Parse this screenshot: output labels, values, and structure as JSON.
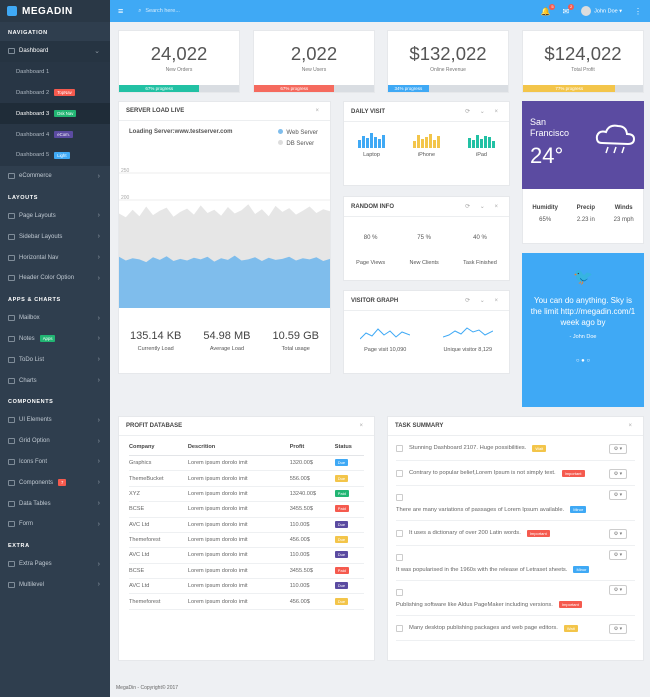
{
  "brand": {
    "name": "MEGADIN"
  },
  "topbar": {
    "search_placeholder": "Search here...",
    "notif_count": "5",
    "mail_count": "2",
    "user": "John Doe"
  },
  "sidebar": {
    "navigation_title": "NAVIGATION",
    "dashboard": "Dashboard",
    "subs": [
      {
        "label": "Dashboard 1",
        "badge": "",
        "color": ""
      },
      {
        "label": "Dashboard 2",
        "badge": "TopNav",
        "color": "#f55a4e"
      },
      {
        "label": "Dashboard 3",
        "badge": "Dsk Nav",
        "color": "#22b573"
      },
      {
        "label": "Dashboard 4",
        "badge": "eCom.",
        "color": "#5b4ba1"
      },
      {
        "label": "Dashboard 5",
        "badge": "Light",
        "color": "#3fa9f5"
      }
    ],
    "ecommerce": "eCommerce",
    "layouts_title": "LAYOUTS",
    "layouts": [
      "Page Layouts",
      "Sidebar Layouts",
      "Horizontal Nav",
      "Header Color Option"
    ],
    "apps_title": "APPS & CHARTS",
    "apps": [
      "Mailbox",
      "Notes",
      "ToDo List",
      "Charts"
    ],
    "notes_badge": "Apps",
    "components_title": "COMPONENTS",
    "components": [
      "UI Elements",
      "Grid Option",
      "Icons Font",
      "Components",
      "Data Tables",
      "Form"
    ],
    "components_badge": "7",
    "extra_title": "EXTRA",
    "extra": [
      "Extra Pages",
      "Multilevel"
    ]
  },
  "stats": [
    {
      "value": "24,022",
      "label": "New Orders",
      "progress": "67% progress",
      "pct": 67,
      "color": "#22c1a4"
    },
    {
      "value": "2,022",
      "label": "New Users",
      "progress": "67% progress",
      "pct": 67,
      "color": "#f56a5e"
    },
    {
      "value": "$132,022",
      "label": "Online Revenue",
      "progress": "34% progress",
      "pct": 34,
      "color": "#3fa9f5"
    },
    {
      "value": "$124,022",
      "label": "Total Profit",
      "progress": "77% progress",
      "pct": 77,
      "color": "#f3c54a"
    }
  ],
  "server": {
    "title": "SERVER LOAD LIVE",
    "loading": "Loading Server:www.testserver.com",
    "legend_web": "Web Server",
    "legend_db": "DB Server",
    "metrics": [
      {
        "value": "135.14 KB",
        "label": "Currently Load"
      },
      {
        "value": "54.98 MB",
        "label": "Average Load"
      },
      {
        "value": "10.59 GB",
        "label": "Total usage"
      }
    ]
  },
  "chart_data": {
    "type": "area",
    "title": "SERVER LOAD LIVE",
    "ylim": [
      0,
      250
    ],
    "yticks": [
      "250",
      "200",
      "150",
      "100",
      "50"
    ],
    "series": [
      {
        "name": "Web Server",
        "color": "#7fbdec",
        "values": [
          95,
          88,
          92,
          90,
          85,
          94,
          89,
          96,
          87,
          91,
          88,
          93,
          90,
          95,
          86,
          92,
          89,
          97,
          88,
          90,
          94,
          87,
          93,
          89,
          91,
          95,
          88,
          92,
          90,
          94,
          87,
          91
        ]
      },
      {
        "name": "DB Server",
        "color": "#e6e6e6",
        "values": [
          175,
          168,
          182,
          170,
          188,
          172,
          180,
          186,
          169,
          178,
          184,
          173,
          190,
          176,
          182,
          171,
          187,
          175,
          181,
          192,
          174,
          183,
          170,
          189,
          178,
          185,
          173,
          180,
          188,
          176,
          183,
          179
        ]
      }
    ]
  },
  "daily": {
    "title": "DAILY VISIT",
    "items": [
      {
        "label": "Laptop",
        "color": "#3fa9f5"
      },
      {
        "label": "iPhone",
        "color": "#f3c54a"
      },
      {
        "label": "iPad",
        "color": "#22c1a4"
      }
    ]
  },
  "random": {
    "title": "RANDOM INFO",
    "items": [
      {
        "value": "80 %",
        "label": "Page Views"
      },
      {
        "value": "75 %",
        "label": "New Clients"
      },
      {
        "value": "40 %",
        "label": "Task Finished"
      }
    ]
  },
  "visitor": {
    "title": "VISITOR GRAPH",
    "page": "Page visit 10,090",
    "unique": "Unique visitor 8,129"
  },
  "weather": {
    "city": "San Francisco",
    "temp": "24°",
    "humidity_label": "Humidity",
    "humidity": "65%",
    "precip_label": "Precip",
    "precip": "2.23 in",
    "winds_label": "Winds",
    "winds": "23 mph"
  },
  "twitter": {
    "text": "You can do anything. Sky is the limit http://megadin.com/1 week ago by",
    "author": "- John Doe"
  },
  "profit": {
    "title": "PROFIT DATABASE",
    "headers": [
      "Company",
      "Descrition",
      "Profit",
      "Status"
    ],
    "rows": [
      {
        "company": "Graphics",
        "desc": "Lorem ipsum dorolo imit",
        "profit": "1320.00$",
        "status": "Due",
        "color": "#3fa9f5"
      },
      {
        "company": "ThemeBucket",
        "desc": "Lorem ipsum dorolo imit",
        "profit": "556.00$",
        "status": "Due",
        "color": "#f3c54a"
      },
      {
        "company": "XYZ",
        "desc": "Lorem ipsum dorolo imit",
        "profit": "13240.00$",
        "status": "Paid",
        "color": "#22b573"
      },
      {
        "company": "BCSE",
        "desc": "Lorem ipsum dorolo imit",
        "profit": "3455.50$",
        "status": "Paid",
        "color": "#f55a4e"
      },
      {
        "company": "AVC Ltd",
        "desc": "Lorem ipsum dorolo imit",
        "profit": "110.00$",
        "status": "Due",
        "color": "#5b4ba1"
      },
      {
        "company": "Themeforest",
        "desc": "Lorem ipsum dorolo imit",
        "profit": "456.00$",
        "status": "Due",
        "color": "#f3c54a"
      },
      {
        "company": "AVC Ltd",
        "desc": "Lorem ipsum dorolo imit",
        "profit": "110.00$",
        "status": "Due",
        "color": "#5b4ba1"
      },
      {
        "company": "BCSE",
        "desc": "Lorem ipsum dorolo imit",
        "profit": "3455.50$",
        "status": "Paid",
        "color": "#f55a4e"
      },
      {
        "company": "AVC Ltd",
        "desc": "Lorem ipsum dorolo imit",
        "profit": "110.00$",
        "status": "Due",
        "color": "#5b4ba1"
      },
      {
        "company": "Themeforest",
        "desc": "Lorem ipsum dorolo imit",
        "profit": "456.00$",
        "status": "Due",
        "color": "#f3c54a"
      }
    ]
  },
  "tasks": {
    "title": "TASK SUMMARY",
    "items": [
      {
        "text": "Stunning Dashboard 2107. Huge possibilities.",
        "badge": "Wait",
        "color": "#f3c54a",
        "wrap": false
      },
      {
        "text": "Contrary to popular belief,Lorem Ipsum is not simply text.",
        "badge": "Important",
        "color": "#f55a4e",
        "wrap": false
      },
      {
        "text": "There are many variations of passages of Lorem Ipsum available.",
        "badge": "Minor",
        "color": "#3fa9f5",
        "wrap": true
      },
      {
        "text": "It uses a dictionary of over 200 Latin words.",
        "badge": "Important",
        "color": "#f55a4e",
        "wrap": false
      },
      {
        "text": "It was popularised in the 1960s with the release of Letraset sheets.",
        "badge": "Minor",
        "color": "#3fa9f5",
        "wrap": true
      },
      {
        "text": "Publishing software like Aldus PageMaker including versions.",
        "badge": "Important",
        "color": "#f55a4e",
        "wrap": true
      },
      {
        "text": "Many desktop publishing packages and web page editors.",
        "badge": "Wait",
        "color": "#f3c54a",
        "wrap": false
      }
    ]
  },
  "footer": "MegaDin - Copyright© 2017"
}
